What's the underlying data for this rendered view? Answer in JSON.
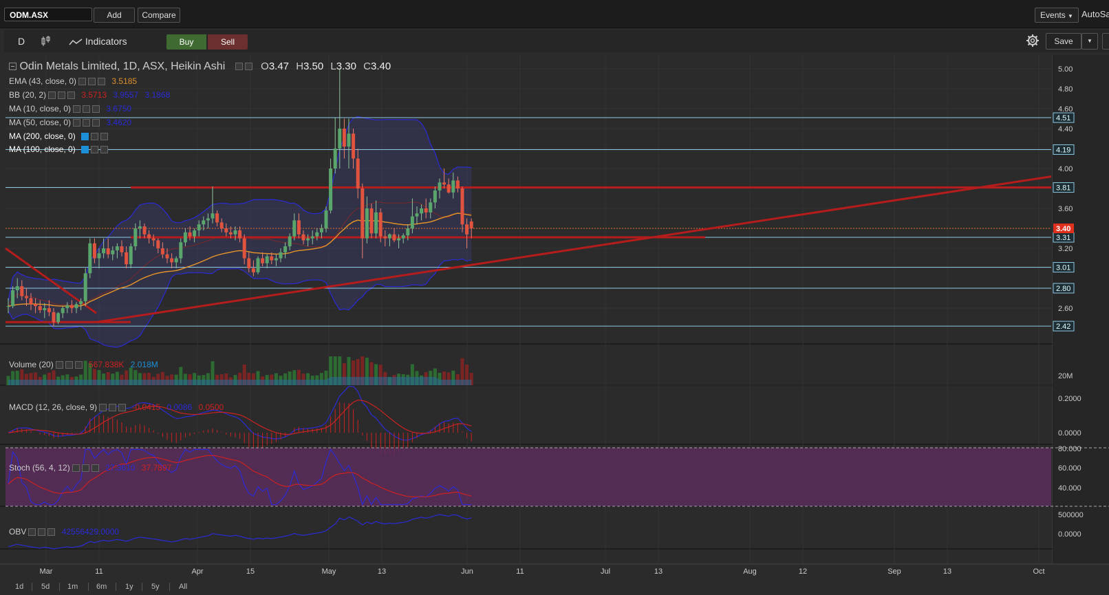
{
  "header": {
    "symbol": "ODM.ASX",
    "add_label": "Add",
    "compare_label": "Compare",
    "events_label": "Events",
    "autosave_label": "AutoSa"
  },
  "toolbar": {
    "period": "D",
    "indicators_label": "Indicators",
    "buy_label": "Buy",
    "sell_label": "Sell",
    "save_label": "Save"
  },
  "legend": {
    "title": "Odin Metals Limited, 1D, ASX, Heikin Ashi",
    "ohlc": {
      "o_label": "O",
      "o": "3.47",
      "h_label": "H",
      "h": "3.50",
      "l_label": "L",
      "l": "3.30",
      "c_label": "C",
      "c": "3.40"
    },
    "ema": {
      "label": "EMA (43, close, 0)",
      "value": "3.5185"
    },
    "bb": {
      "label": "BB (20, 2)",
      "v1": "3.5713",
      "v2": "3.9557",
      "v3": "3.1868"
    },
    "ma10": {
      "label": "MA (10, close, 0)",
      "value": "3.6750"
    },
    "ma50": {
      "label": "MA (50, close, 0)",
      "value": "3.4620"
    },
    "ma200": {
      "label": "MA (200, close, 0)"
    },
    "ma100": {
      "label": "MA (100, close, 0)"
    },
    "volume": {
      "label": "Volume (20)",
      "v1": "567.838K",
      "v2": "2.018M"
    },
    "macd": {
      "label": "MACD (12, 26, close, 9)",
      "v1": "-0.0415",
      "v2": "0.0086",
      "v3": "0.0500"
    },
    "stoch": {
      "label": "Stoch (56, 4, 12)",
      "v1": "27.3610",
      "v2": "37.7897"
    },
    "obv": {
      "label": "OBV",
      "value": "42556429.0000"
    }
  },
  "colors": {
    "bg": "#2b2b2b",
    "up": "#5aa56b",
    "down": "#e0543f",
    "bb": "#2b2bd8",
    "ema": "#e0902a",
    "trend": "#b51c1c",
    "hline": "#8ecae6",
    "stoch_fill": "#5a2d5a"
  },
  "chart_data": {
    "type": "candlestick",
    "title": "Odin Metals Limited, 1D, ASX, Heikin Ashi",
    "x_ticks": [
      "Mar",
      "11",
      "Apr",
      "15",
      "May",
      "13",
      "Jun",
      "11",
      "Jul",
      "13",
      "Aug",
      "12",
      "Sep",
      "13",
      "Oct"
    ],
    "y_ticks": [
      "2.60",
      "2.80",
      "3.00",
      "3.20",
      "3.40",
      "3.60",
      "3.80",
      "4.00",
      "4.20",
      "4.40",
      "4.60",
      "4.80",
      "5.00"
    ],
    "ylim": [
      2.2,
      5.1
    ],
    "horizontal_levels": [
      "4.51",
      "4.19",
      "3.81",
      "3.31",
      "3.01",
      "2.80",
      "2.42"
    ],
    "last_price": "3.40",
    "candles": [
      [
        2.62,
        2.7,
        2.55,
        2.62
      ],
      [
        2.62,
        2.82,
        2.6,
        2.78
      ],
      [
        2.78,
        2.9,
        2.7,
        2.82
      ],
      [
        2.82,
        2.88,
        2.68,
        2.72
      ],
      [
        2.72,
        2.8,
        2.62,
        2.7
      ],
      [
        2.7,
        2.75,
        2.58,
        2.64
      ],
      [
        2.64,
        2.7,
        2.55,
        2.62
      ],
      [
        2.62,
        2.68,
        2.55,
        2.58
      ],
      [
        2.58,
        2.65,
        2.5,
        2.6
      ],
      [
        2.6,
        2.68,
        2.52,
        2.56
      ],
      [
        2.56,
        2.6,
        2.42,
        2.46
      ],
      [
        2.46,
        2.56,
        2.44,
        2.55
      ],
      [
        2.55,
        2.62,
        2.5,
        2.6
      ],
      [
        2.6,
        2.66,
        2.55,
        2.63
      ],
      [
        2.63,
        2.68,
        2.55,
        2.6
      ],
      [
        2.6,
        2.66,
        2.55,
        2.64
      ],
      [
        2.64,
        2.7,
        2.58,
        2.67
      ],
      [
        2.67,
        3.0,
        2.62,
        2.95
      ],
      [
        2.95,
        3.3,
        2.9,
        3.25
      ],
      [
        3.25,
        3.3,
        3.05,
        3.1
      ],
      [
        3.1,
        3.2,
        3.0,
        3.15
      ],
      [
        3.15,
        3.3,
        3.1,
        3.2
      ],
      [
        3.2,
        3.3,
        3.1,
        3.14
      ],
      [
        3.14,
        3.22,
        3.08,
        3.18
      ],
      [
        3.18,
        3.25,
        3.1,
        3.22
      ],
      [
        3.22,
        3.28,
        3.12,
        3.16
      ],
      [
        3.16,
        3.22,
        3.0,
        3.04
      ],
      [
        3.04,
        3.25,
        3.0,
        3.22
      ],
      [
        3.22,
        3.45,
        3.18,
        3.4
      ],
      [
        3.4,
        3.48,
        3.3,
        3.42
      ],
      [
        3.42,
        3.45,
        3.3,
        3.34
      ],
      [
        3.34,
        3.38,
        3.25,
        3.3
      ],
      [
        3.3,
        3.34,
        3.22,
        3.28
      ],
      [
        3.28,
        3.3,
        3.15,
        3.2
      ],
      [
        3.2,
        3.26,
        3.1,
        3.14
      ],
      [
        3.14,
        3.2,
        3.05,
        3.1
      ],
      [
        3.1,
        3.15,
        3.0,
        3.06
      ],
      [
        3.06,
        3.12,
        3.0,
        3.1
      ],
      [
        3.1,
        3.3,
        3.05,
        3.26
      ],
      [
        3.26,
        3.4,
        3.22,
        3.36
      ],
      [
        3.36,
        3.42,
        3.28,
        3.32
      ],
      [
        3.32,
        3.4,
        3.26,
        3.38
      ],
      [
        3.38,
        3.48,
        3.32,
        3.44
      ],
      [
        3.44,
        3.52,
        3.38,
        3.48
      ],
      [
        3.48,
        3.55,
        3.4,
        3.5
      ],
      [
        3.5,
        3.82,
        3.45,
        3.55
      ],
      [
        3.55,
        3.58,
        3.42,
        3.46
      ],
      [
        3.46,
        3.5,
        3.36,
        3.4
      ],
      [
        3.4,
        3.45,
        3.32,
        3.36
      ],
      [
        3.36,
        3.42,
        3.3,
        3.34
      ],
      [
        3.34,
        3.42,
        3.28,
        3.38
      ],
      [
        3.38,
        3.42,
        3.26,
        3.3
      ],
      [
        3.3,
        3.34,
        3.04,
        3.1
      ],
      [
        3.1,
        3.16,
        2.96,
        3.0
      ],
      [
        3.0,
        3.08,
        2.92,
        2.96
      ],
      [
        2.96,
        3.12,
        2.94,
        3.1
      ],
      [
        3.1,
        3.16,
        3.02,
        3.05
      ],
      [
        3.05,
        3.14,
        3.0,
        3.12
      ],
      [
        3.12,
        3.16,
        3.04,
        3.08
      ],
      [
        3.08,
        3.14,
        3.02,
        3.1
      ],
      [
        3.1,
        3.2,
        3.06,
        3.16
      ],
      [
        3.16,
        3.26,
        3.1,
        3.22
      ],
      [
        3.22,
        3.35,
        3.18,
        3.32
      ],
      [
        3.32,
        3.55,
        3.28,
        3.48
      ],
      [
        3.48,
        3.55,
        3.3,
        3.34
      ],
      [
        3.34,
        3.38,
        3.24,
        3.28
      ],
      [
        3.28,
        3.34,
        3.22,
        3.3
      ],
      [
        3.3,
        3.38,
        3.24,
        3.32
      ],
      [
        3.32,
        3.4,
        3.28,
        3.36
      ],
      [
        3.36,
        3.44,
        3.3,
        3.4
      ],
      [
        3.4,
        3.62,
        3.36,
        3.58
      ],
      [
        3.58,
        4.1,
        3.55,
        4.0
      ],
      [
        4.0,
        4.51,
        3.95,
        4.2
      ],
      [
        4.2,
        5.0,
        4.0,
        4.4
      ],
      [
        4.4,
        4.5,
        4.1,
        4.22
      ],
      [
        4.22,
        4.5,
        4.0,
        4.35
      ],
      [
        4.35,
        4.4,
        4.0,
        4.1
      ],
      [
        4.1,
        4.2,
        3.7,
        3.8
      ],
      [
        3.8,
        3.85,
        3.1,
        3.3
      ],
      [
        3.3,
        3.72,
        3.25,
        3.6
      ],
      [
        3.6,
        3.65,
        3.3,
        3.35
      ],
      [
        3.35,
        3.68,
        3.3,
        3.56
      ],
      [
        3.56,
        3.6,
        3.26,
        3.32
      ],
      [
        3.32,
        3.38,
        3.22,
        3.3
      ],
      [
        3.3,
        3.35,
        3.22,
        3.34
      ],
      [
        3.34,
        3.4,
        3.26,
        3.28
      ],
      [
        3.28,
        3.34,
        3.2,
        3.3
      ],
      [
        3.3,
        3.35,
        3.25,
        3.33
      ],
      [
        3.33,
        3.44,
        3.28,
        3.4
      ],
      [
        3.4,
        3.7,
        3.35,
        3.52
      ],
      [
        3.52,
        3.62,
        3.44,
        3.55
      ],
      [
        3.55,
        3.64,
        3.48,
        3.6
      ],
      [
        3.6,
        3.7,
        3.5,
        3.56
      ],
      [
        3.56,
        3.7,
        3.5,
        3.66
      ],
      [
        3.66,
        3.82,
        3.6,
        3.78
      ],
      [
        3.78,
        3.9,
        3.7,
        3.86
      ],
      [
        3.86,
        4.0,
        3.8,
        3.84
      ],
      [
        3.84,
        3.9,
        3.75,
        3.76
      ],
      [
        3.76,
        3.96,
        3.7,
        3.88
      ],
      [
        3.88,
        3.92,
        3.76,
        3.8
      ],
      [
        3.8,
        3.82,
        3.36,
        3.44
      ],
      [
        3.44,
        3.5,
        3.2,
        3.34
      ],
      [
        3.47,
        3.5,
        3.3,
        3.4
      ]
    ],
    "indicators": {
      "volume_axis": "20M",
      "macd_axis": [
        "0.2000",
        "0.0000"
      ],
      "stoch_axis": [
        "80.000",
        "60.000",
        "40.000"
      ],
      "obv_axis": [
        "500000",
        "0.0000"
      ]
    }
  },
  "range_buttons": [
    "1d",
    "5d",
    "1m",
    "6m",
    "1y",
    "5y",
    "All"
  ]
}
